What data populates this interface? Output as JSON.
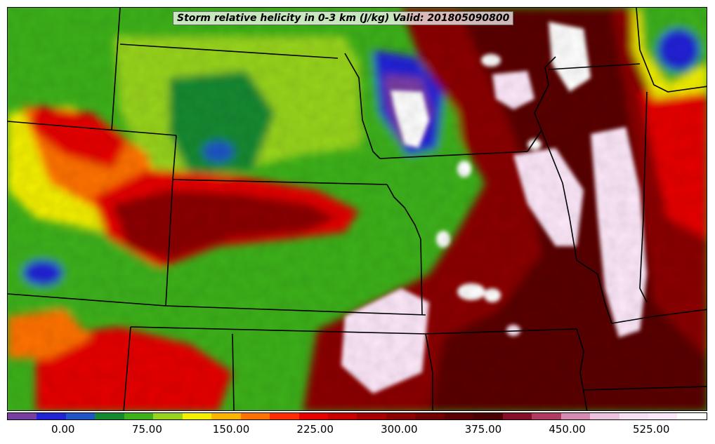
{
  "title": "Storm relative helicity in 0-3 km (J/kg) Valid: 201805090800",
  "colorbar": {
    "colors": [
      "#7a3ea3",
      "#2222d6",
      "#1f55c8",
      "#138a30",
      "#3db11a",
      "#98d41e",
      "#f4f000",
      "#ffb400",
      "#ff7200",
      "#ff2d00",
      "#e60000",
      "#c80000",
      "#a80000",
      "#8c0000",
      "#730000",
      "#5a0000",
      "#4a0000",
      "#860e28",
      "#b03a60",
      "#d68bb2",
      "#ecc2df",
      "#f8e0f3",
      "#fde8f9",
      "#ffffff"
    ],
    "tick_labels": [
      "0.00",
      "75.00",
      "150.00",
      "225.00",
      "300.00",
      "375.00",
      "450.00",
      "525.00"
    ],
    "tick_fractions": [
      0.08,
      0.2,
      0.32,
      0.44,
      0.56,
      0.68,
      0.8,
      0.92
    ]
  }
}
